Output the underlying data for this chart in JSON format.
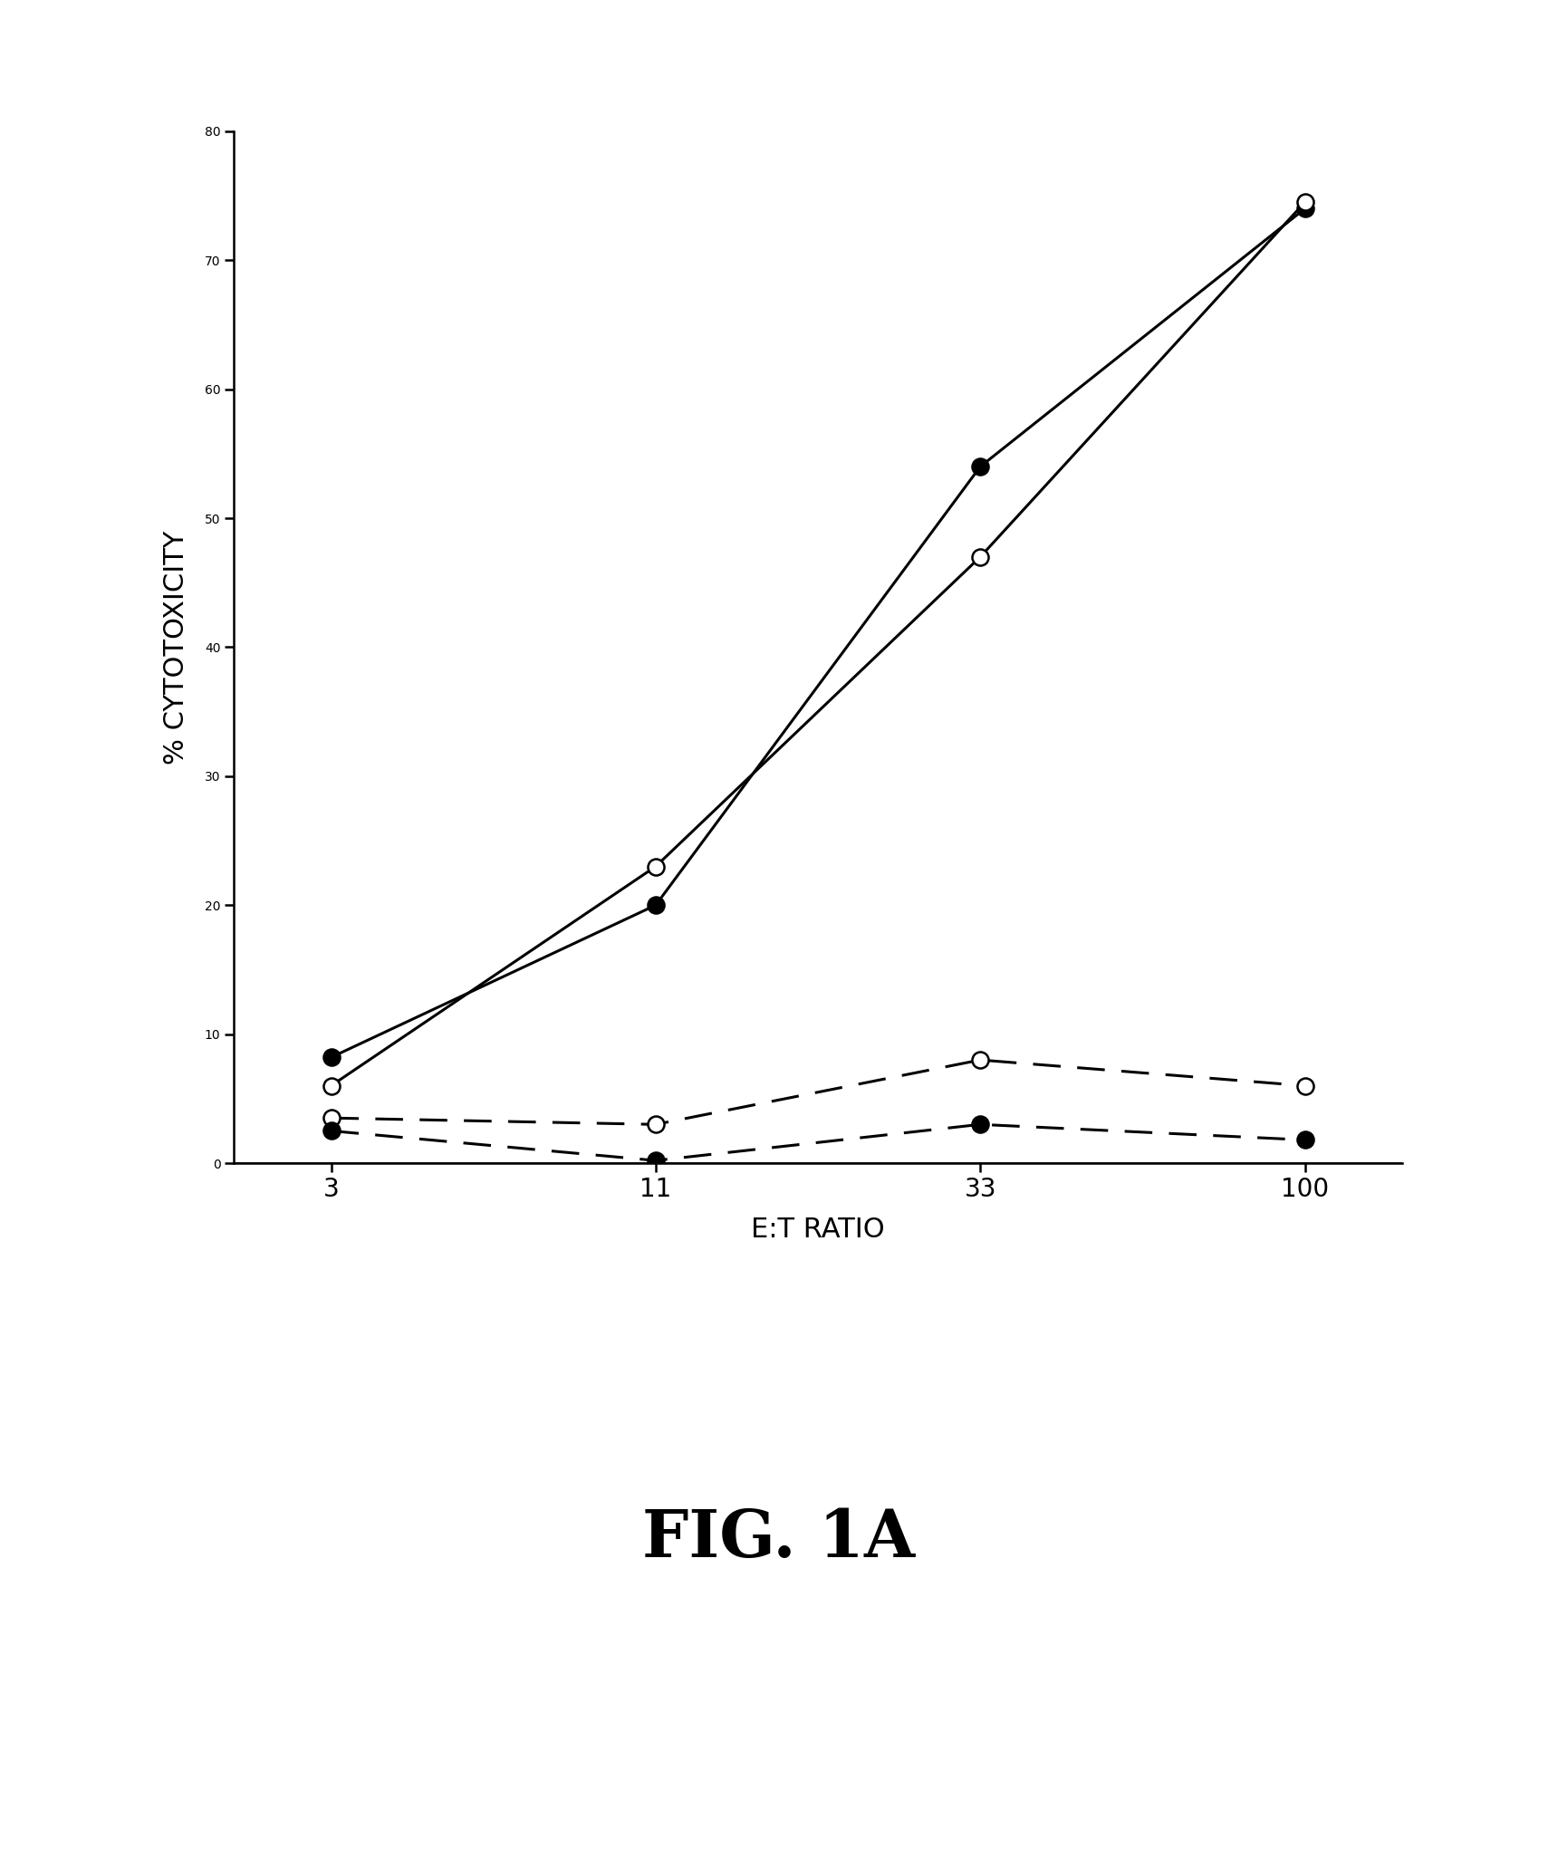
{
  "x_positions": [
    0,
    1,
    2,
    3
  ],
  "x_labels": [
    "3",
    "11",
    "33",
    "100"
  ],
  "series": [
    {
      "name": "solid_filled",
      "y": [
        8.2,
        20.0,
        54.0,
        74.0
      ],
      "linestyle": "solid",
      "marker": "filled_circle",
      "color": "#000000",
      "linewidth": 2.2,
      "markersize": 13
    },
    {
      "name": "solid_open",
      "y": [
        6.0,
        23.0,
        47.0,
        74.5
      ],
      "linestyle": "solid",
      "marker": "open_circle",
      "color": "#000000",
      "linewidth": 2.2,
      "markersize": 13
    },
    {
      "name": "dashed_open",
      "y": [
        3.5,
        3.0,
        8.0,
        6.0
      ],
      "linestyle": "dashed",
      "marker": "open_circle",
      "color": "#000000",
      "linewidth": 2.2,
      "markersize": 13
    },
    {
      "name": "dashed_filled",
      "y": [
        2.5,
        0.2,
        3.0,
        1.8
      ],
      "linestyle": "dashed",
      "marker": "filled_circle",
      "color": "#000000",
      "linewidth": 2.2,
      "markersize": 13
    }
  ],
  "ylabel": "% CYTOTOXICITY",
  "xlabel": "E:T RATIO",
  "ylim": [
    0,
    80
  ],
  "yticks": [
    0,
    10,
    20,
    30,
    40,
    50,
    60,
    70,
    80
  ],
  "figure_label": "FIG. 1A",
  "background_color": "#ffffff",
  "ylabel_fontsize": 22,
  "xlabel_fontsize": 22,
  "tick_fontsize": 20,
  "figure_label_fontsize": 52,
  "dashes": [
    10,
    6
  ]
}
